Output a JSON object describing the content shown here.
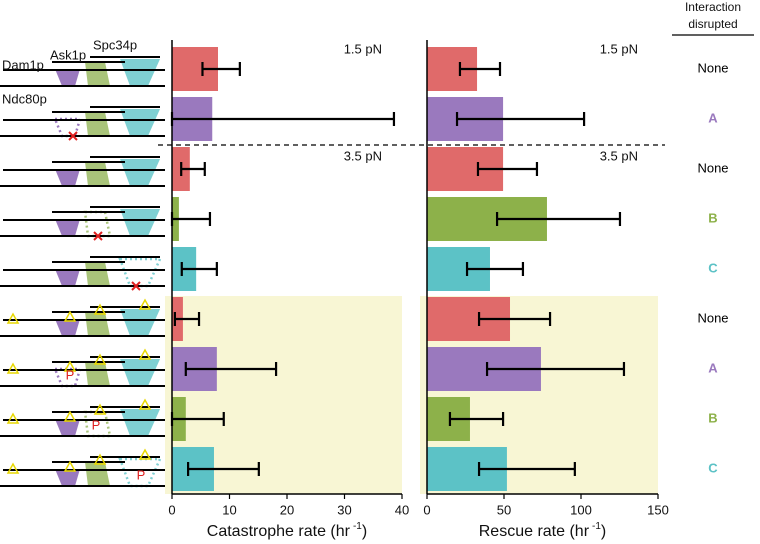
{
  "chart_data": [
    {
      "type": "bar",
      "orientation": "horizontal",
      "xlabel_parts": [
        "Catastrophe rate (hr",
        "-1",
        ")"
      ],
      "annotations": [
        "1.5 pN",
        "3.5 pN"
      ],
      "values": [
        8.0,
        7.0,
        3.1,
        1.2,
        4.2,
        1.9,
        7.8,
        2.4,
        7.3
      ],
      "lower": [
        5.3,
        0,
        1.6,
        0,
        1.7,
        0.5,
        2.4,
        0,
        2.8
      ],
      "upper": [
        11.8,
        38.6,
        5.7,
        6.6,
        7.8,
        4.7,
        18.1,
        9.0,
        15.1
      ],
      "colors": [
        "#e06a6a",
        "#9a79be",
        "#e06a6a",
        "#8db14a",
        "#5cc2c6",
        "#e06a6a",
        "#9a79be",
        "#8db14a",
        "#5cc2c6"
      ],
      "xlim": [
        0,
        40
      ],
      "xticks": [
        0,
        10,
        20,
        30,
        40
      ]
    },
    {
      "type": "bar",
      "orientation": "horizontal",
      "xlabel_parts": [
        "Rescue rate (hr",
        "-1",
        ")"
      ],
      "annotations": [
        "1.5 pN",
        "3.5 pN"
      ],
      "values": [
        32.5,
        49.4,
        49.4,
        77.9,
        40.9,
        53.9,
        74.0,
        27.9,
        51.9
      ],
      "lower": [
        21.4,
        19.5,
        33.1,
        45.5,
        26.0,
        33.8,
        39.0,
        14.9,
        33.8
      ],
      "upper": [
        47.4,
        102.0,
        71.4,
        125.3,
        62.3,
        79.9,
        127.9,
        49.4,
        96.0
      ],
      "colors": [
        "#e06a6a",
        "#9a79be",
        "#e06a6a",
        "#8db14a",
        "#5cc2c6",
        "#e06a6a",
        "#9a79be",
        "#8db14a",
        "#5cc2c6"
      ],
      "xlim": [
        0,
        150
      ],
      "xticks": [
        0,
        50,
        100,
        150
      ]
    }
  ],
  "schematic": {
    "labels": [
      "Dam1p",
      "Ask1p",
      "Spc34p",
      "Ndc80p"
    ],
    "phospho": "P"
  },
  "interaction": {
    "header": [
      "Interaction",
      "disrupted"
    ],
    "labels": [
      "None",
      "A",
      "None",
      "B",
      "C",
      "None",
      "A",
      "B",
      "C"
    ],
    "label_colors": [
      "#000000",
      "#9a79be",
      "#000000",
      "#8db14a",
      "#5cc2c6",
      "#000000",
      "#9a79be",
      "#8db14a",
      "#5cc2c6"
    ]
  }
}
